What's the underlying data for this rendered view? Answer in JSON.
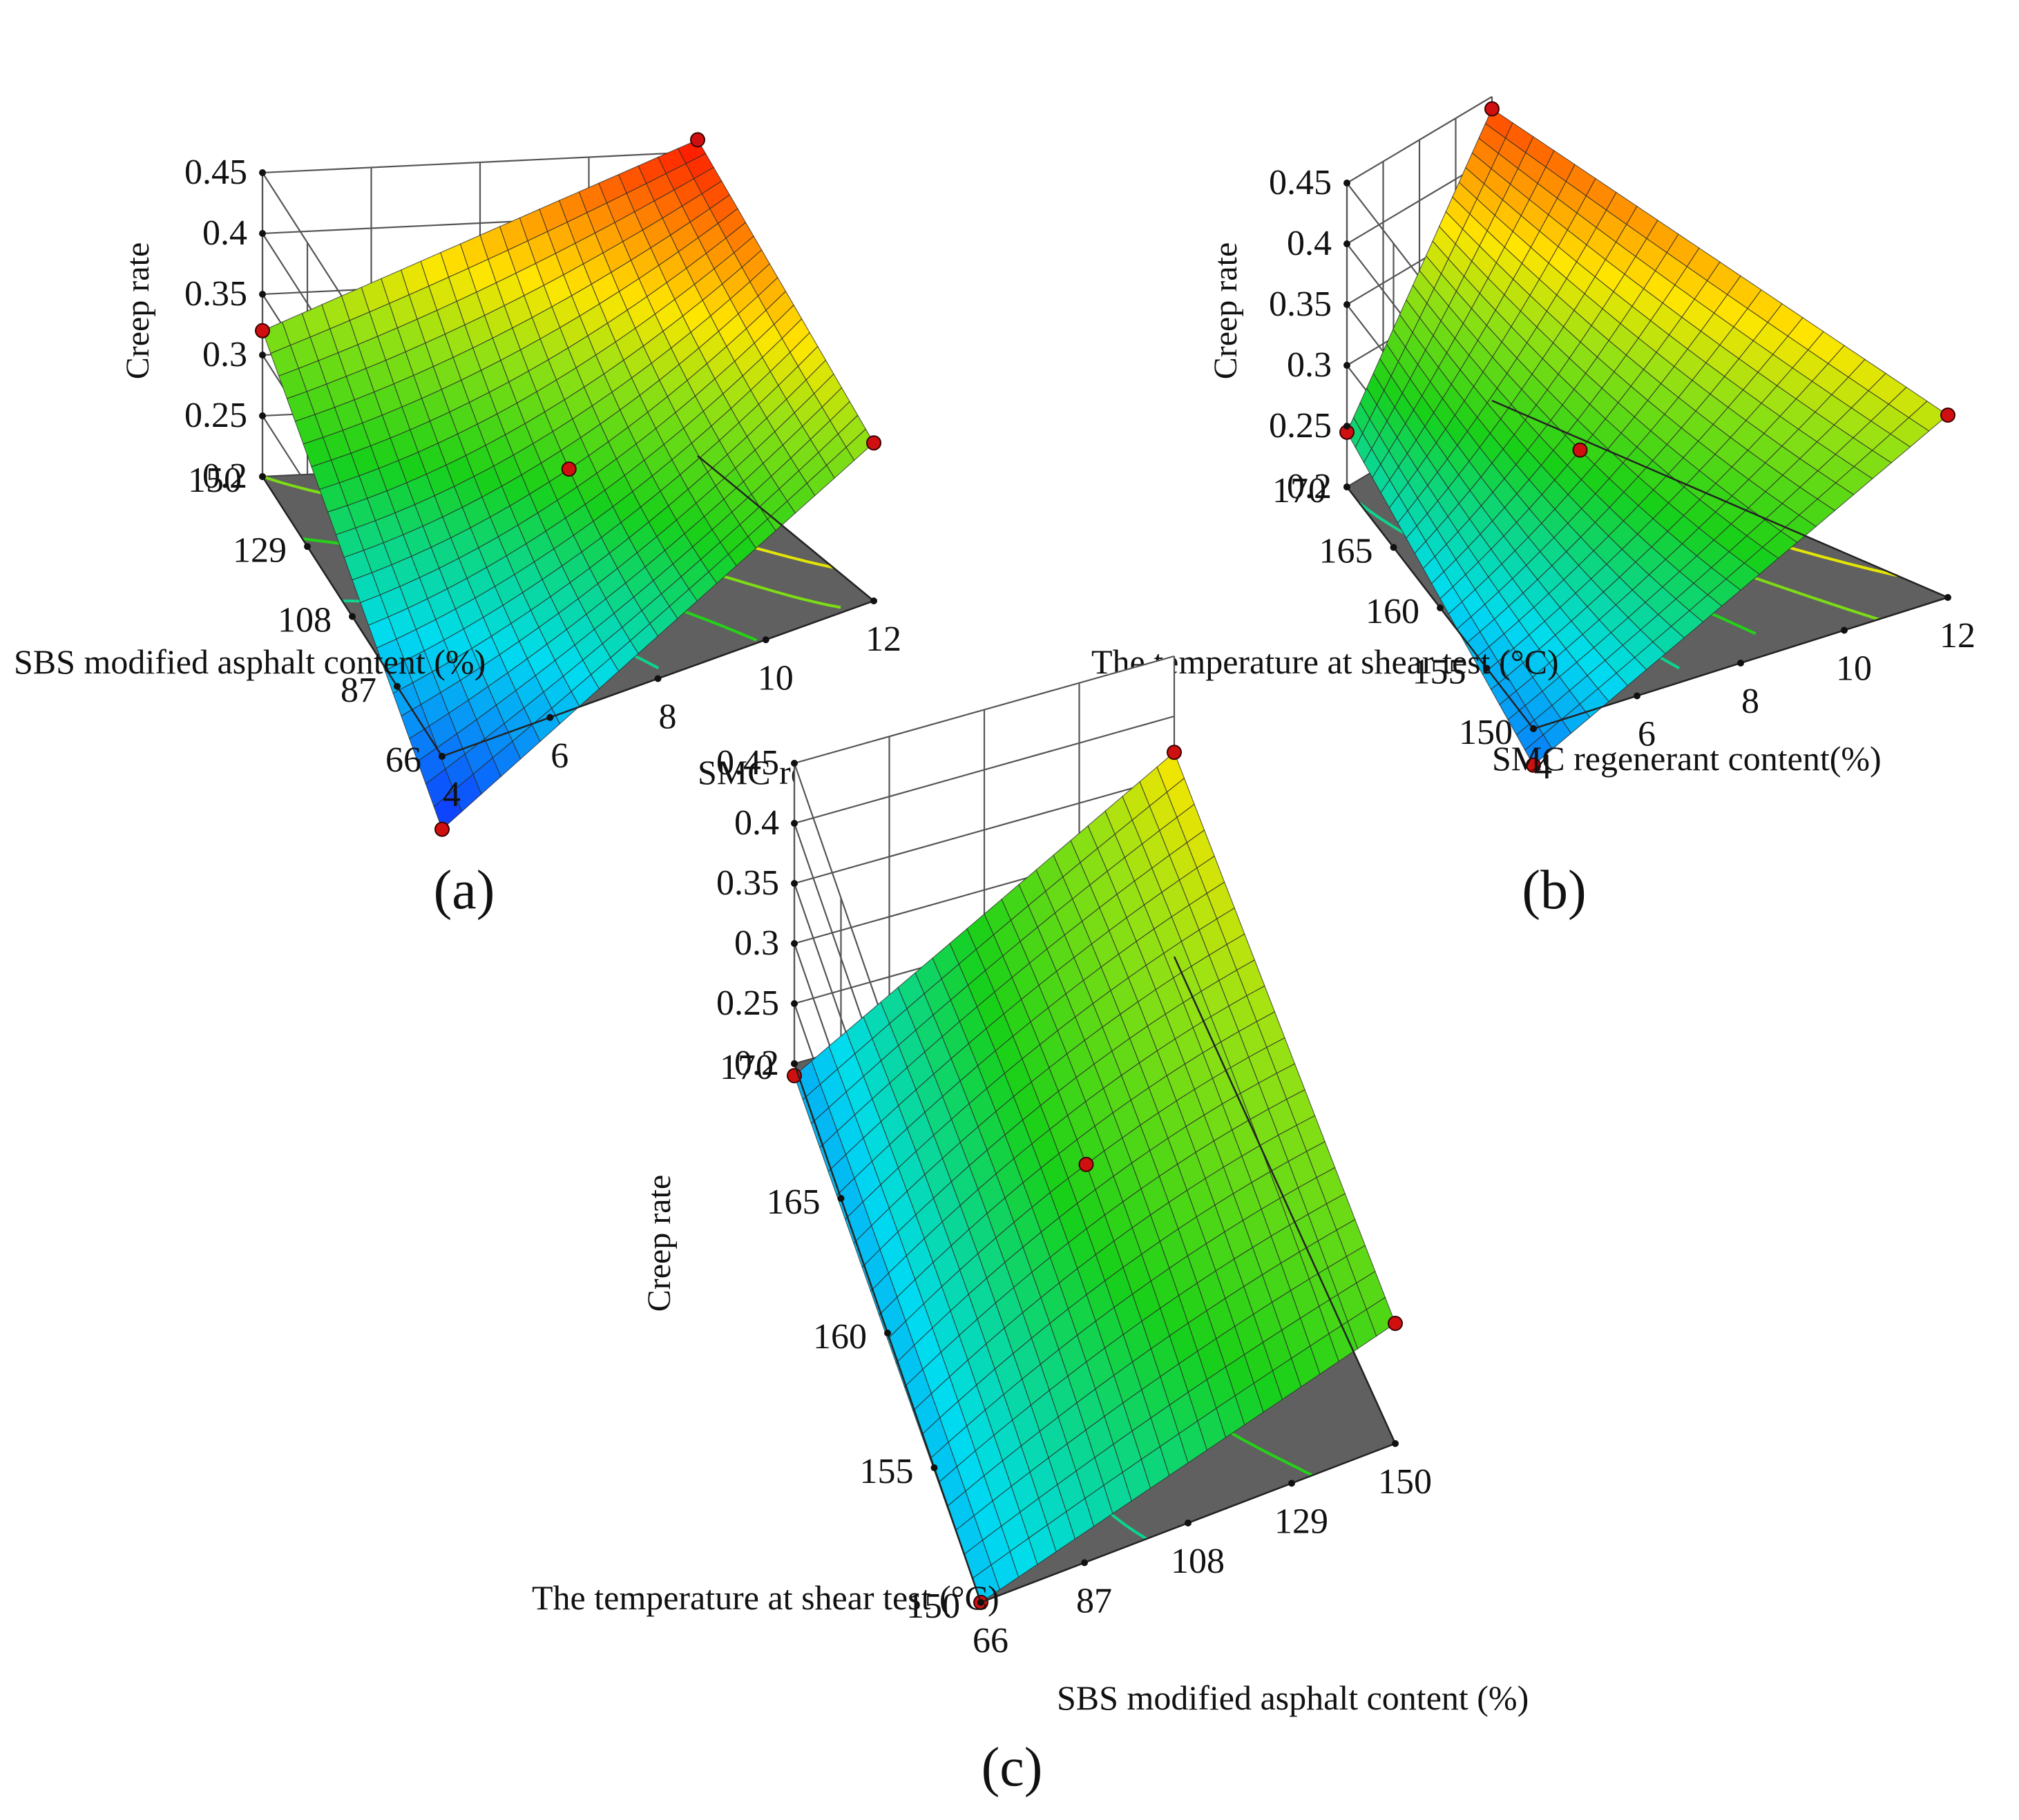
{
  "figure": {
    "captions": [
      "(a)",
      "(b)",
      "(c)"
    ]
  },
  "colors": {
    "floor": "#606060",
    "low": "#1030ff",
    "mid": "#18d018",
    "high": "#ff1000"
  },
  "chart_data": [
    {
      "id": "a",
      "type": "surface",
      "zlabel": "Creep rate",
      "xlabel": "SMC regenerant content(%)",
      "ylabel": "SBS modified asphalt content (%)",
      "xticks": [
        "4",
        "6",
        "8",
        "10",
        "12"
      ],
      "yticks": [
        "66",
        "87",
        "108",
        "129",
        "150"
      ],
      "zticks": [
        "0.2",
        "0.25",
        "0.3",
        "0.35",
        "0.4",
        "0.45"
      ],
      "xlim": [
        4,
        12
      ],
      "ylim": [
        66,
        150
      ],
      "zlim": [
        0.2,
        0.45
      ],
      "corners": {
        "x_low_y_low": 0.14,
        "x_high_y_low": 0.33,
        "x_low_y_high": 0.32,
        "x_high_y_high": 0.46
      },
      "center": 0.285,
      "points": [
        {
          "x": 8,
          "y": 108,
          "z": 0.285
        },
        {
          "x": 4,
          "y": 66,
          "z": 0.14
        },
        {
          "x": 12,
          "y": 66,
          "z": 0.33
        },
        {
          "x": 4,
          "y": 150,
          "z": 0.32
        },
        {
          "x": 12,
          "y": 150,
          "z": 0.46
        }
      ]
    },
    {
      "id": "b",
      "type": "surface",
      "zlabel": "Creep rate",
      "xlabel": "SMC regenerant content(%)",
      "ylabel": "The temperature at shear test (°C)",
      "xticks": [
        "4",
        "6",
        "8",
        "10",
        "12"
      ],
      "yticks": [
        "150",
        "155",
        "160",
        "165",
        "170"
      ],
      "zticks": [
        "0.2",
        "0.25",
        "0.3",
        "0.35",
        "0.4",
        "0.45"
      ],
      "xlim": [
        4,
        12
      ],
      "ylim": [
        150,
        170
      ],
      "zlim": [
        0.2,
        0.45
      ],
      "corners": {
        "x_low_y_low": 0.17,
        "x_high_y_low": 0.35,
        "x_low_y_high": 0.245,
        "x_high_y_high": 0.44
      },
      "center": 0.285,
      "points": [
        {
          "x": 8,
          "y": 160,
          "z": 0.285
        },
        {
          "x": 4,
          "y": 150,
          "z": 0.17
        },
        {
          "x": 12,
          "y": 150,
          "z": 0.35
        },
        {
          "x": 4,
          "y": 170,
          "z": 0.245
        },
        {
          "x": 12,
          "y": 170,
          "z": 0.44
        }
      ]
    },
    {
      "id": "c",
      "type": "surface",
      "zlabel": "Creep rate",
      "xlabel": "SBS modified asphalt content (%)",
      "ylabel": "The temperature at shear test (°C)",
      "xticks": [
        "66",
        "87",
        "108",
        "129",
        "150"
      ],
      "yticks": [
        "150",
        "155",
        "160",
        "165",
        "170"
      ],
      "zticks": [
        "0.2",
        "0.25",
        "0.3",
        "0.35",
        "0.4",
        "0.45"
      ],
      "xlim": [
        66,
        150
      ],
      "ylim": [
        150,
        170
      ],
      "zlim": [
        0.2,
        0.45
      ],
      "corners": {
        "x_low_y_low": 0.2,
        "x_high_y_low": 0.3,
        "x_low_y_high": 0.19,
        "x_high_y_high": 0.37
      },
      "center": 0.285,
      "points": [
        {
          "x": 108,
          "y": 160,
          "z": 0.285
        },
        {
          "x": 66,
          "y": 150,
          "z": 0.2
        },
        {
          "x": 150,
          "y": 150,
          "z": 0.3
        },
        {
          "x": 66,
          "y": 170,
          "z": 0.19
        },
        {
          "x": 150,
          "y": 170,
          "z": 0.37
        }
      ]
    }
  ]
}
